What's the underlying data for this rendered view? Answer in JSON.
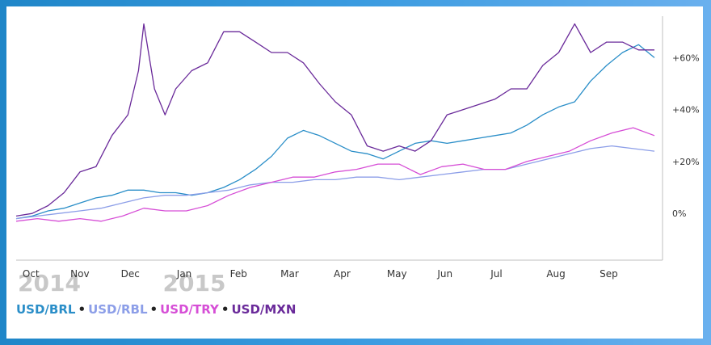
{
  "chart_data": {
    "type": "line",
    "x_months": [
      "Oct",
      "Nov",
      "Dec",
      "Jan",
      "Feb",
      "Mar",
      "Apr",
      "May",
      "Jun",
      "Jul",
      "Aug",
      "Sep"
    ],
    "years": [
      "2014",
      "2015"
    ],
    "y_ticks": [
      "+60%",
      "+40%",
      "+20%",
      "0%"
    ],
    "ylim": [
      -18,
      76
    ],
    "y_axis_side": "right",
    "grid": false,
    "legend_position": "bottom-left",
    "series": [
      {
        "name": "USD/BRL",
        "color": "#2a8ec8",
        "points": [
          [
            0,
            -2
          ],
          [
            0.3,
            -1
          ],
          [
            0.6,
            1
          ],
          [
            0.9,
            2
          ],
          [
            1.2,
            4
          ],
          [
            1.5,
            6
          ],
          [
            1.8,
            7
          ],
          [
            2.1,
            9
          ],
          [
            2.4,
            9
          ],
          [
            2.7,
            8
          ],
          [
            3.0,
            8
          ],
          [
            3.3,
            7
          ],
          [
            3.6,
            8
          ],
          [
            3.9,
            10
          ],
          [
            4.2,
            13
          ],
          [
            4.5,
            17
          ],
          [
            4.8,
            22
          ],
          [
            5.1,
            29
          ],
          [
            5.4,
            32
          ],
          [
            5.7,
            30
          ],
          [
            6.0,
            27
          ],
          [
            6.3,
            24
          ],
          [
            6.6,
            23
          ],
          [
            6.9,
            21
          ],
          [
            7.2,
            24
          ],
          [
            7.5,
            27
          ],
          [
            7.8,
            28
          ],
          [
            8.1,
            27
          ],
          [
            8.4,
            28
          ],
          [
            8.7,
            29
          ],
          [
            9.0,
            30
          ],
          [
            9.3,
            31
          ],
          [
            9.6,
            34
          ],
          [
            9.9,
            38
          ],
          [
            10.2,
            41
          ],
          [
            10.5,
            43
          ],
          [
            10.8,
            51
          ],
          [
            11.1,
            57
          ],
          [
            11.4,
            62
          ],
          [
            11.7,
            65
          ],
          [
            12.0,
            60
          ]
        ]
      },
      {
        "name": "USD/RBL",
        "color": "#8c9ee8",
        "points": [
          [
            0,
            -2
          ],
          [
            0.4,
            -1
          ],
          [
            0.8,
            0
          ],
          [
            1.2,
            1
          ],
          [
            1.6,
            2
          ],
          [
            2.0,
            4
          ],
          [
            2.4,
            6
          ],
          [
            2.8,
            7
          ],
          [
            3.2,
            7
          ],
          [
            3.6,
            8
          ],
          [
            4.0,
            9
          ],
          [
            4.4,
            11
          ],
          [
            4.8,
            12
          ],
          [
            5.2,
            12
          ],
          [
            5.6,
            13
          ],
          [
            6.0,
            13
          ],
          [
            6.4,
            14
          ],
          [
            6.8,
            14
          ],
          [
            7.2,
            13
          ],
          [
            7.6,
            14
          ],
          [
            8.0,
            15
          ],
          [
            8.4,
            16
          ],
          [
            8.8,
            17
          ],
          [
            9.2,
            17
          ],
          [
            9.6,
            19
          ],
          [
            10.0,
            21
          ],
          [
            10.4,
            23
          ],
          [
            10.8,
            25
          ],
          [
            11.2,
            26
          ],
          [
            11.6,
            25
          ],
          [
            12.0,
            24
          ]
        ]
      },
      {
        "name": "USD/TRY",
        "color": "#d64ed6",
        "points": [
          [
            0,
            -3
          ],
          [
            0.4,
            -2
          ],
          [
            0.8,
            -3
          ],
          [
            1.2,
            -2
          ],
          [
            1.6,
            -3
          ],
          [
            2.0,
            -1
          ],
          [
            2.4,
            2
          ],
          [
            2.8,
            1
          ],
          [
            3.2,
            1
          ],
          [
            3.6,
            3
          ],
          [
            4.0,
            7
          ],
          [
            4.4,
            10
          ],
          [
            4.8,
            12
          ],
          [
            5.2,
            14
          ],
          [
            5.6,
            14
          ],
          [
            6.0,
            16
          ],
          [
            6.4,
            17
          ],
          [
            6.8,
            19
          ],
          [
            7.2,
            19
          ],
          [
            7.6,
            15
          ],
          [
            8.0,
            18
          ],
          [
            8.4,
            19
          ],
          [
            8.8,
            17
          ],
          [
            9.2,
            17
          ],
          [
            9.6,
            20
          ],
          [
            10.0,
            22
          ],
          [
            10.4,
            24
          ],
          [
            10.8,
            28
          ],
          [
            11.2,
            31
          ],
          [
            11.6,
            33
          ],
          [
            12.0,
            30
          ]
        ]
      },
      {
        "name": "USD/MXN",
        "color": "#6a2a9a",
        "points": [
          [
            0,
            -1
          ],
          [
            0.3,
            0
          ],
          [
            0.6,
            3
          ],
          [
            0.9,
            8
          ],
          [
            1.2,
            16
          ],
          [
            1.5,
            18
          ],
          [
            1.8,
            30
          ],
          [
            2.1,
            38
          ],
          [
            2.3,
            55
          ],
          [
            2.4,
            73
          ],
          [
            2.6,
            48
          ],
          [
            2.8,
            38
          ],
          [
            3.0,
            48
          ],
          [
            3.3,
            55
          ],
          [
            3.6,
            58
          ],
          [
            3.9,
            70
          ],
          [
            4.2,
            70
          ],
          [
            4.5,
            66
          ],
          [
            4.8,
            62
          ],
          [
            5.1,
            62
          ],
          [
            5.4,
            58
          ],
          [
            5.7,
            50
          ],
          [
            6.0,
            43
          ],
          [
            6.3,
            38
          ],
          [
            6.6,
            26
          ],
          [
            6.9,
            24
          ],
          [
            7.2,
            26
          ],
          [
            7.5,
            24
          ],
          [
            7.8,
            28
          ],
          [
            8.1,
            38
          ],
          [
            8.4,
            40
          ],
          [
            8.7,
            42
          ],
          [
            9.0,
            44
          ],
          [
            9.3,
            48
          ],
          [
            9.6,
            48
          ],
          [
            9.9,
            57
          ],
          [
            10.2,
            62
          ],
          [
            10.5,
            73
          ],
          [
            10.8,
            62
          ],
          [
            11.1,
            66
          ],
          [
            11.4,
            66
          ],
          [
            11.7,
            63
          ],
          [
            12.0,
            63
          ]
        ]
      }
    ]
  }
}
